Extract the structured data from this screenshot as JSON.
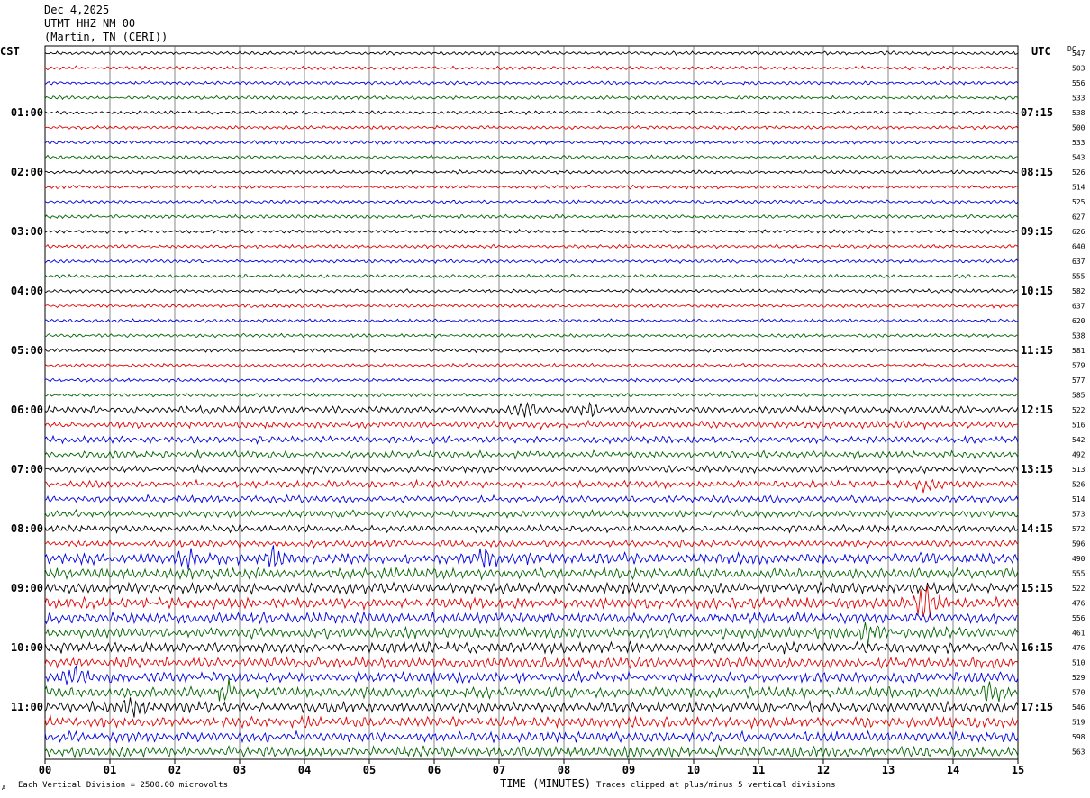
{
  "header": {
    "date": "Dec 4,2025",
    "station": "UTMT HHZ NM 00",
    "location": "(Martin, TN (CERI))"
  },
  "left_tz": "CST",
  "right_tz": "UTC",
  "dc_header": "DC",
  "footer": {
    "scale_note": "Each Vertical Division = 2500.00 microvolts",
    "xlabel": "TIME (MINUTES)",
    "clip_note": "Traces clipped at plus/minus 5 vertical divisions",
    "corner_mark": "A"
  },
  "colors": {
    "black": "#000000",
    "red": "#e00000",
    "blue": "#0000e0",
    "green": "#006400"
  },
  "chart_data": {
    "type": "line",
    "title": "UTMT HHZ NM 00",
    "xlabel": "TIME (MINUTES)",
    "xlim": [
      0,
      15
    ],
    "x_ticks": [
      "00",
      "01",
      "02",
      "03",
      "04",
      "05",
      "06",
      "07",
      "08",
      "09",
      "10",
      "11",
      "12",
      "13",
      "14",
      "15"
    ],
    "grid": true,
    "trace_color_cycle": [
      "black",
      "red",
      "blue",
      "green"
    ],
    "left_hour_labels": [
      "01:00",
      "02:00",
      "03:00",
      "04:00",
      "05:00",
      "06:00",
      "07:00",
      "08:00",
      "09:00",
      "10:00",
      "11:00"
    ],
    "right_hour_labels": [
      "07:15",
      "08:15",
      "09:15",
      "10:15",
      "11:15",
      "12:15",
      "13:15",
      "14:15",
      "15:15",
      "16:15",
      "17:15"
    ],
    "dc_offsets": [
      547,
      503,
      556,
      533,
      538,
      500,
      533,
      543,
      526,
      514,
      525,
      627,
      626,
      640,
      637,
      555,
      582,
      637,
      620,
      538,
      581,
      579,
      577,
      585,
      522,
      516,
      542,
      492,
      513,
      526,
      514,
      573,
      572,
      596,
      490,
      555,
      522,
      476,
      556,
      461,
      476,
      510,
      529,
      570,
      546,
      519,
      598,
      563
    ],
    "noise_level": [
      1,
      1,
      1,
      1,
      1,
      1,
      1,
      1,
      1,
      1,
      1,
      1,
      1,
      1,
      1,
      1,
      1,
      1,
      1,
      1,
      1,
      1,
      1,
      1,
      2,
      2,
      2,
      2,
      2,
      2,
      2,
      2,
      2,
      2,
      3,
      3,
      3,
      3,
      3,
      3,
      3,
      3,
      3,
      3,
      3,
      3,
      3,
      3
    ],
    "events": [
      {
        "row": 24,
        "minute": 7.4,
        "amp": 2
      },
      {
        "row": 24,
        "minute": 8.4,
        "amp": 2
      },
      {
        "row": 29,
        "minute": 13.6,
        "amp": 2
      },
      {
        "row": 34,
        "minute": 2.2,
        "amp": 3
      },
      {
        "row": 34,
        "minute": 3.5,
        "amp": 3
      },
      {
        "row": 34,
        "minute": 6.8,
        "amp": 4
      },
      {
        "row": 37,
        "minute": 13.6,
        "amp": 5
      },
      {
        "row": 39,
        "minute": 12.7,
        "amp": 3
      },
      {
        "row": 42,
        "minute": 0.5,
        "amp": 3
      },
      {
        "row": 43,
        "minute": 2.8,
        "amp": 3
      },
      {
        "row": 43,
        "minute": 14.6,
        "amp": 3
      },
      {
        "row": 44,
        "minute": 1.4,
        "amp": 3
      }
    ]
  }
}
